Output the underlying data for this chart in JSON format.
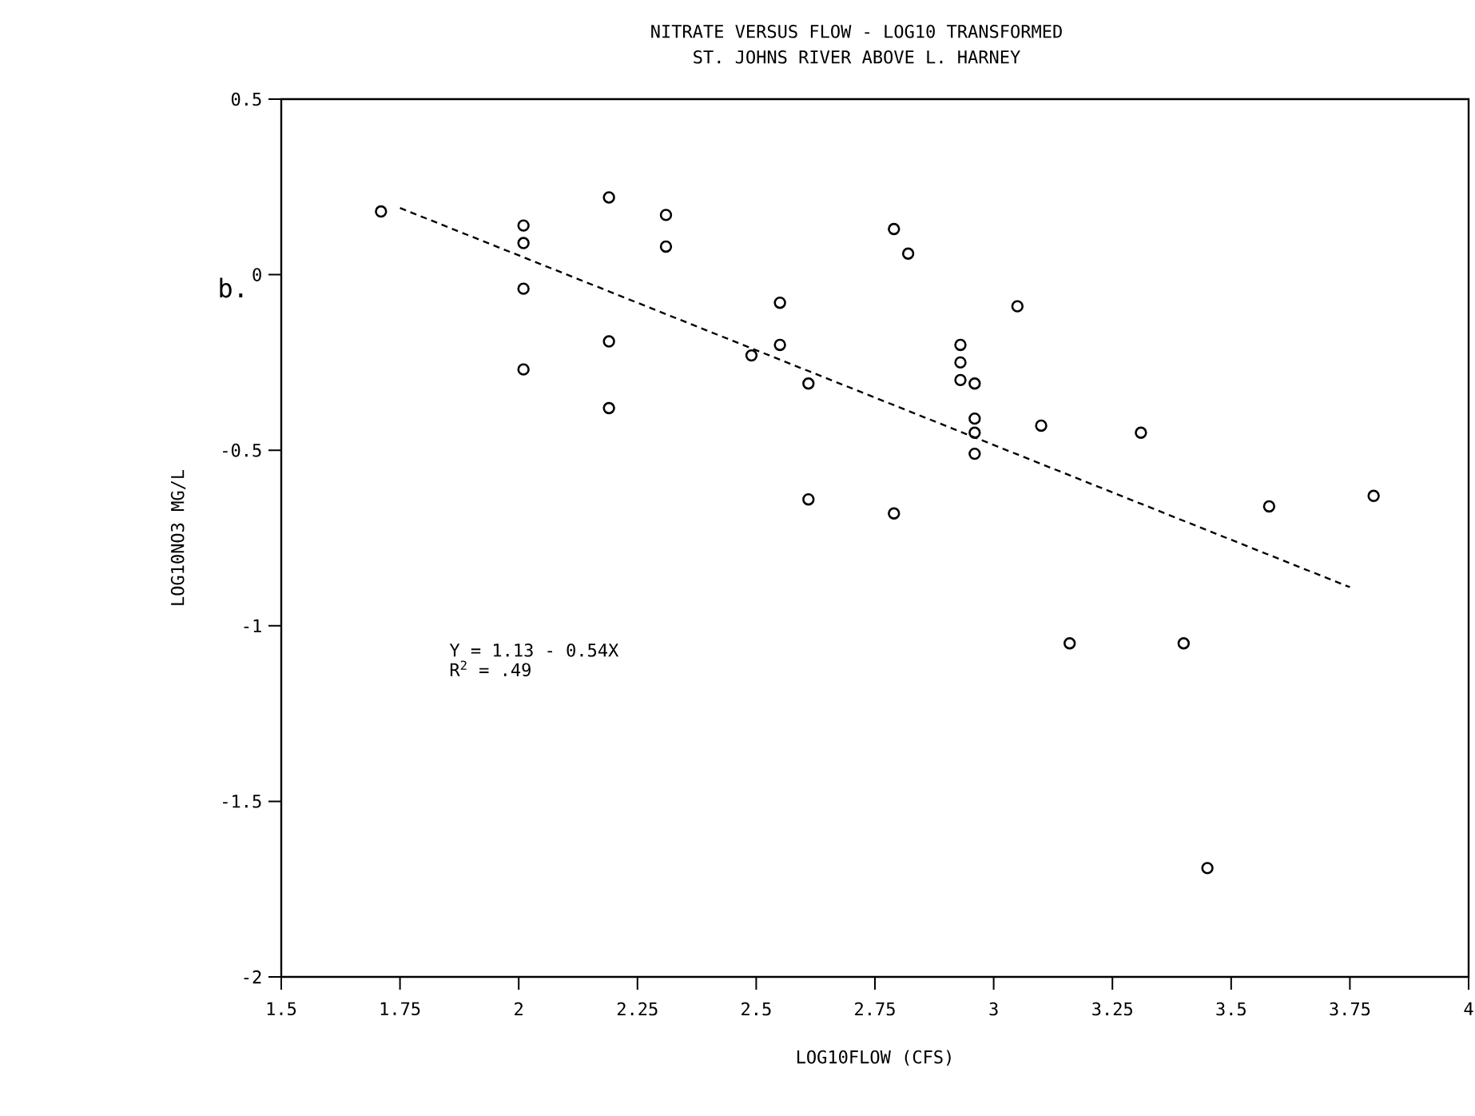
{
  "chart_data": {
    "type": "scatter",
    "title": "NITRATE VERSUS FLOW - LOG10 TRANSFORMED",
    "subtitle": "ST. JOHNS RIVER ABOVE L. HARNEY",
    "xlabel": "LOG10FLOW (CFS)",
    "ylabel": "LOG10NO3 MG/L",
    "xlim": [
      1.5,
      4
    ],
    "ylim": [
      -2,
      0.5
    ],
    "xticks": [
      1.5,
      1.75,
      2,
      2.25,
      2.5,
      2.75,
      3,
      3.25,
      3.5,
      3.75,
      4
    ],
    "yticks": [
      -2,
      -1.5,
      -1,
      -0.5,
      0,
      0.5
    ],
    "grid": false,
    "marker": "circle",
    "series": [
      {
        "color": "#000000",
        "x": [
          1.71,
          2.01,
          2.01,
          2.01,
          2.01,
          2.19,
          2.19,
          2.19,
          2.31,
          2.31,
          2.49,
          2.55,
          2.55,
          2.61,
          2.61,
          2.79,
          2.82,
          3.05,
          2.93,
          2.93,
          2.93,
          2.96,
          2.96,
          2.96,
          2.96,
          3.1,
          3.31,
          2.79,
          3.58,
          3.8,
          3.16,
          3.4,
          3.45
        ],
        "values": [
          0.18,
          0.14,
          0.09,
          -0.04,
          -0.27,
          0.22,
          -0.19,
          -0.38,
          0.17,
          0.08,
          -0.23,
          -0.08,
          -0.2,
          -0.31,
          -0.64,
          0.13,
          0.06,
          -0.09,
          -0.2,
          -0.25,
          -0.3,
          -0.31,
          -0.41,
          -0.45,
          -0.51,
          -0.43,
          -0.45,
          -0.68,
          -0.66,
          -0.63,
          -1.05,
          -1.05,
          -1.69
        ]
      },
      {
        "type": "line",
        "color": "#000000",
        "line_style": "dashed",
        "marker": "none",
        "x": [
          1.75,
          3.75
        ],
        "values": [
          0.19,
          -0.89
        ]
      }
    ],
    "annotations": [
      "b.",
      "Y = 1.13 - 0.54X",
      "R$^{2}$ = .49"
    ]
  }
}
